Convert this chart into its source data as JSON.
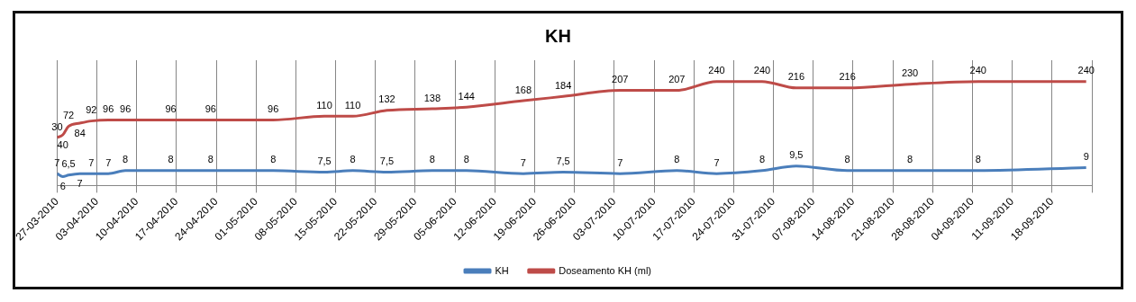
{
  "chart_data": {
    "type": "line",
    "title": "KH",
    "x": [
      "2010-03-27",
      "2010-03-28",
      "2010-03-29",
      "2010-03-31",
      "2010-04-02",
      "2010-04-05",
      "2010-04-08",
      "2010-04-16",
      "2010-04-23",
      "2010-05-04",
      "2010-05-13",
      "2010-05-18",
      "2010-05-24",
      "2010-06-01",
      "2010-06-07",
      "2010-06-17",
      "2010-06-24",
      "2010-07-04",
      "2010-07-14",
      "2010-07-21",
      "2010-07-29",
      "2010-08-04",
      "2010-08-13",
      "2010-08-24",
      "2010-09-05",
      "2010-09-24"
    ],
    "series": [
      {
        "name": "KH",
        "color": "#4a7ebb",
        "axis": "y2",
        "values": [
          7,
          6,
          6.5,
          7,
          7,
          7,
          8,
          8,
          8,
          8,
          7.5,
          8,
          7.5,
          8,
          8,
          7,
          7.5,
          7,
          8,
          7,
          8,
          9.5,
          8,
          8,
          8,
          9
        ],
        "value_labels": [
          "7",
          "6",
          "6,5",
          "7",
          "7",
          "7",
          "8",
          "8",
          "8",
          "8",
          "7,5",
          "8",
          "7,5",
          "8",
          "8",
          "7",
          "7,5",
          "7",
          "8",
          "7",
          "8",
          "9,5",
          "8",
          "8",
          "8",
          "9"
        ]
      },
      {
        "name": "Doseamento KH (ml)",
        "color": "#be4b48",
        "values": [
          30,
          40,
          72,
          84,
          92,
          96,
          96,
          96,
          96,
          96,
          110,
          110,
          132,
          138,
          144,
          168,
          184,
          207,
          207,
          240,
          240,
          216,
          216,
          230,
          240,
          240
        ]
      }
    ],
    "data_labels": true,
    "xlim": [
      "2010-03-27",
      "2010-09-25"
    ],
    "xticks": [
      {
        "value": "2010-03-27",
        "label": "27-03-2010"
      },
      {
        "value": "2010-04-03",
        "label": "03-04-2010"
      },
      {
        "value": "2010-04-10",
        "label": "10-04-2010"
      },
      {
        "value": "2010-04-17",
        "label": "17-04-2010"
      },
      {
        "value": "2010-04-24",
        "label": "24-04-2010"
      },
      {
        "value": "2010-05-01",
        "label": "01-05-2010"
      },
      {
        "value": "2010-05-08",
        "label": "08-05-2010"
      },
      {
        "value": "2010-05-15",
        "label": "15-05-2010"
      },
      {
        "value": "2010-05-22",
        "label": "22-05-2010"
      },
      {
        "value": "2010-05-29",
        "label": "29-05-2010"
      },
      {
        "value": "2010-06-05",
        "label": "05-06-2010"
      },
      {
        "value": "2010-06-12",
        "label": "12-06-2010"
      },
      {
        "value": "2010-06-19",
        "label": "19-06-2010"
      },
      {
        "value": "2010-06-26",
        "label": "26-06-2010"
      },
      {
        "value": "2010-07-03",
        "label": "03-07-2010"
      },
      {
        "value": "2010-07-10",
        "label": "10-07-2010"
      },
      {
        "value": "2010-07-17",
        "label": "17-07-2010"
      },
      {
        "value": "2010-07-24",
        "label": "24-07-2010"
      },
      {
        "value": "2010-07-31",
        "label": "31-07-2010"
      },
      {
        "value": "2010-08-07",
        "label": "07-08-2010"
      },
      {
        "value": "2010-08-14",
        "label": "14-08-2010"
      },
      {
        "value": "2010-08-21",
        "label": "21-08-2010"
      },
      {
        "value": "2010-08-28",
        "label": "28-08-2010"
      },
      {
        "value": "2010-09-04",
        "label": "04-09-2010"
      },
      {
        "value": "2010-09-11",
        "label": "11-09-2010"
      },
      {
        "value": "2010-09-18",
        "label": "18-09-2010"
      },
      {
        "value": "2010-09-25",
        "label": null
      }
    ],
    "ylim": [
      -150,
      320
    ],
    "y2lim": [
      3,
      45
    ],
    "tick_labels": "x",
    "grid": "x",
    "legend": "bottom",
    "marker": "none",
    "line_style": "solid"
  }
}
